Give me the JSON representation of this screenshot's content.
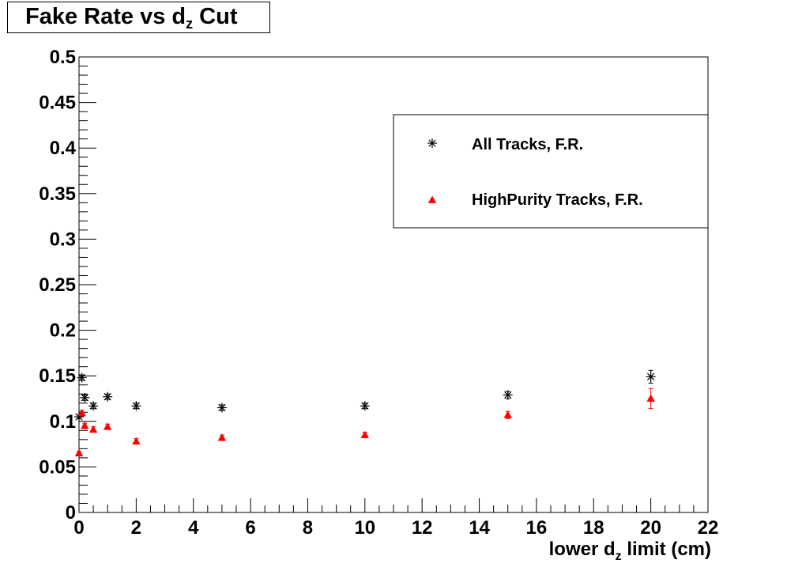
{
  "chart_data": {
    "type": "scatter",
    "title": {
      "pre": "Fake Rate vs d",
      "sub": "z",
      "post": " Cut"
    },
    "xlabel": {
      "pre": "lower d",
      "sub": "z",
      "post": " limit (cm)"
    },
    "ylabel": "",
    "xlim": [
      0,
      22
    ],
    "ylim": [
      0,
      0.5
    ],
    "x_ticks": [
      "0",
      "2",
      "4",
      "6",
      "8",
      "10",
      "12",
      "14",
      "16",
      "18",
      "20",
      "22"
    ],
    "y_ticks": [
      "0",
      "0.05",
      "0.1",
      "0.15",
      "0.2",
      "0.25",
      "0.3",
      "0.35",
      "0.4",
      "0.45",
      "0.5"
    ],
    "grid": false,
    "legend_position": "top-right",
    "series": [
      {
        "name": "All Tracks, F.R.",
        "marker": "asterisk",
        "color": "#000000",
        "x": [
          0,
          0.1,
          0.2,
          0.5,
          1,
          2,
          5,
          10,
          15,
          20
        ],
        "y": [
          0.105,
          0.148,
          0.126,
          0.117,
          0.127,
          0.117,
          0.115,
          0.117,
          0.129,
          0.149
        ],
        "yerr": [
          0.002,
          0.003,
          0.003,
          0.003,
          0.003,
          0.003,
          0.003,
          0.003,
          0.004,
          0.007
        ]
      },
      {
        "name": "HighPurity Tracks, F.R.",
        "marker": "triangle",
        "color": "#ff0000",
        "x": [
          0,
          0.1,
          0.2,
          0.5,
          1,
          2,
          5,
          10,
          15,
          20
        ],
        "y": [
          0.065,
          0.109,
          0.095,
          0.091,
          0.094,
          0.078,
          0.082,
          0.085,
          0.107,
          0.125
        ],
        "yerr": [
          0.002,
          0.003,
          0.003,
          0.003,
          0.003,
          0.003,
          0.003,
          0.003,
          0.004,
          0.011
        ]
      }
    ]
  }
}
